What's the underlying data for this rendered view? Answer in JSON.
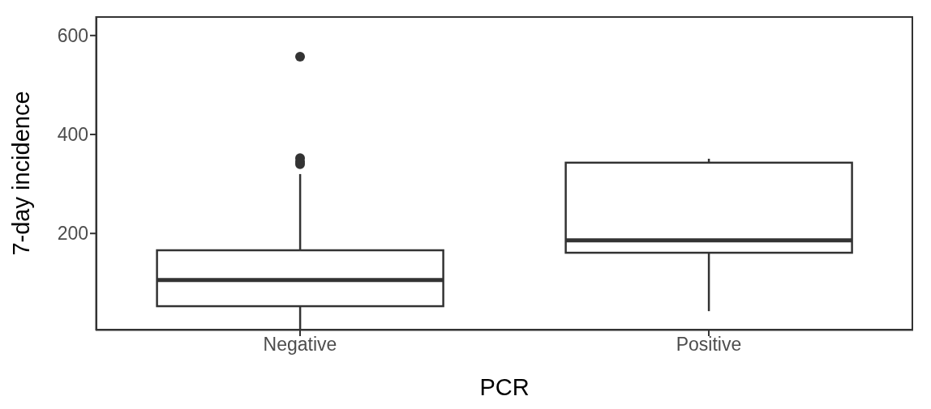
{
  "chart_data": {
    "type": "box",
    "xlabel": "PCR",
    "ylabel": "7-day incidence",
    "categories": [
      "Negative",
      "Positive"
    ],
    "boxes": [
      {
        "low": 5,
        "q1": 53,
        "median": 106,
        "q3": 166,
        "high": 320,
        "outliers": [
          340,
          345,
          352,
          557
        ]
      },
      {
        "low": 43,
        "q1": 161,
        "median": 186,
        "q3": 343,
        "high": 351
      }
    ],
    "color": "#333333",
    "ylim": [
      4,
      639
    ],
    "yticks": [
      200,
      400,
      600
    ],
    "grid": false,
    "legend": false
  }
}
